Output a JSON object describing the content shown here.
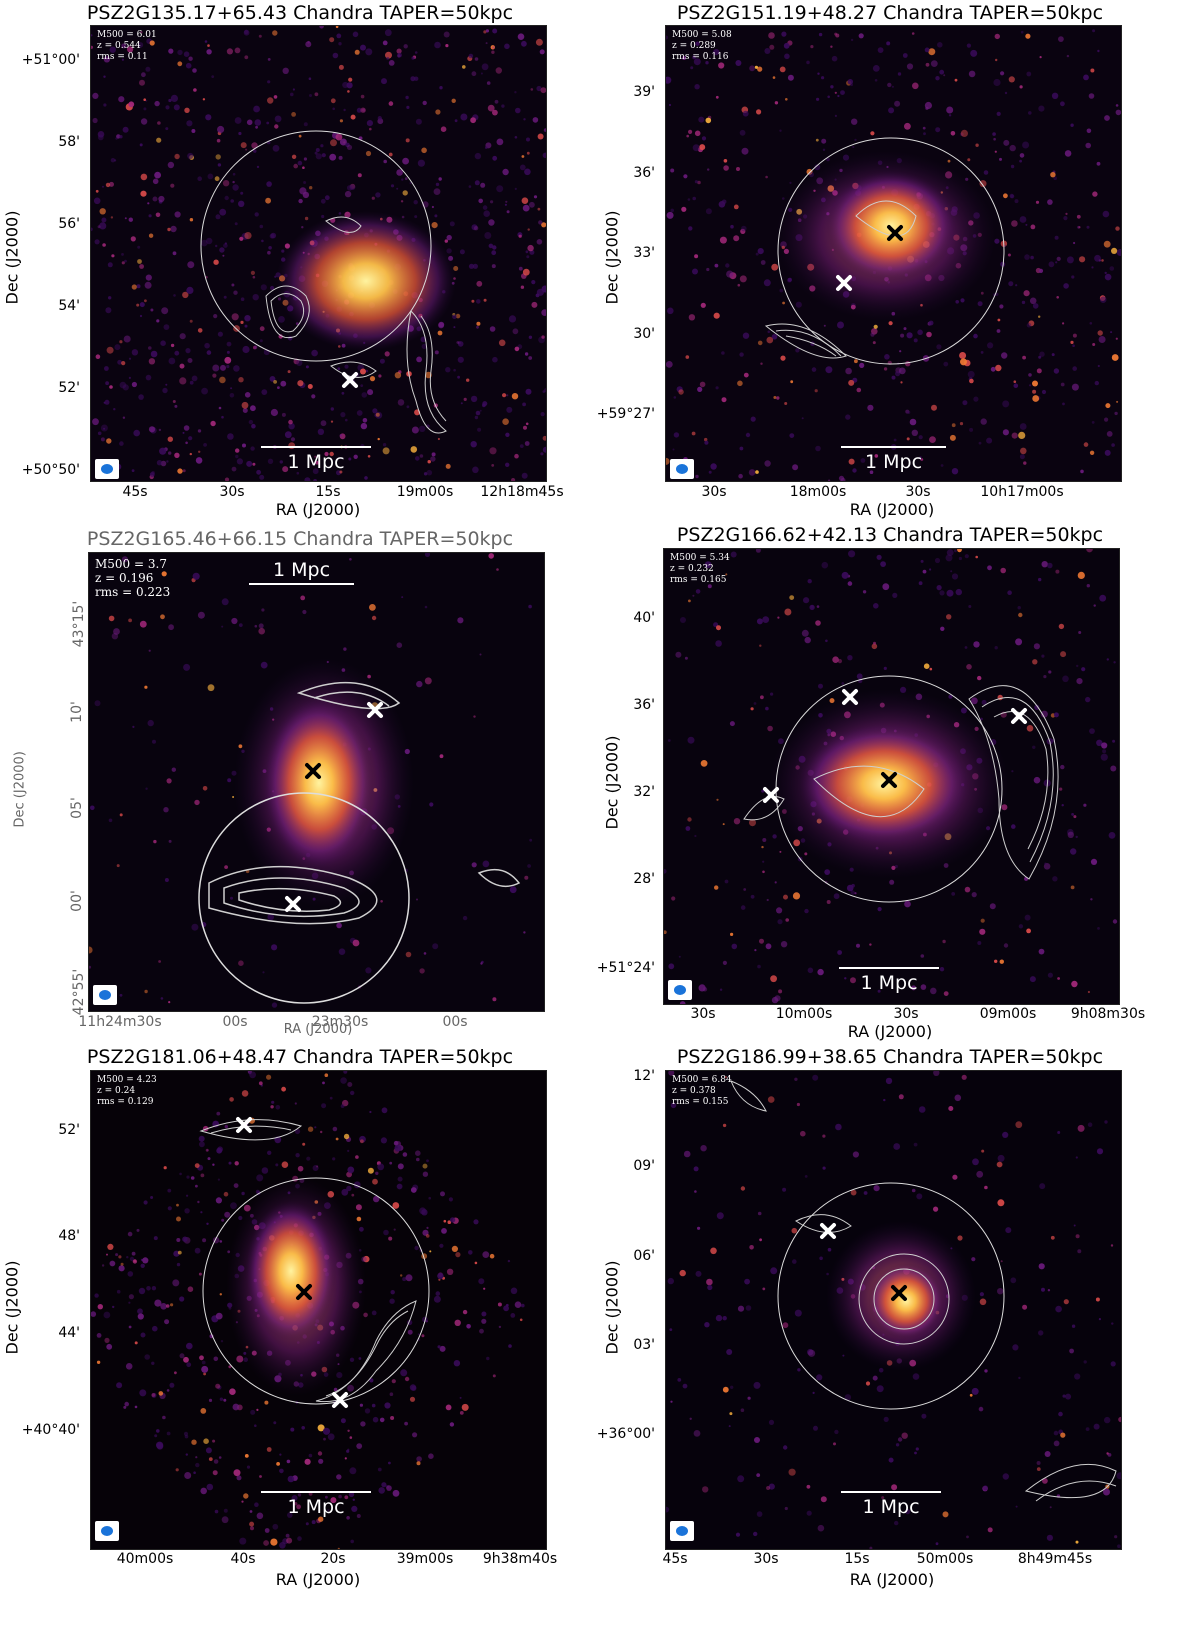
{
  "panels": [
    {
      "title": "PSZ2G135.17+65.43 Chandra TAPER=50kpc",
      "info": [
        "M500 = 6.01",
        "z = 0.544",
        "rms = 0.11"
      ],
      "scale_label": "1 Mpc",
      "ylabel": "Dec (J2000)",
      "xlabel": "RA (J2000)",
      "yticks": [
        "+51°00'",
        "58'",
        "56'",
        "54'",
        "52'",
        "+50°50'"
      ],
      "xticks": [
        "45s",
        "30s",
        "15s",
        "19m00s",
        "12h18m45s"
      ]
    },
    {
      "title": "PSZ2G151.19+48.27 Chandra TAPER=50kpc",
      "info": [
        "M500 = 5.08",
        "z = 0.289",
        "rms = 0.116"
      ],
      "scale_label": "1 Mpc",
      "ylabel": "Dec (J2000)",
      "xlabel": "RA (J2000)",
      "yticks": [
        "39'",
        "36'",
        "33'",
        "30'",
        "+59°27'"
      ],
      "xticks": [
        "30s",
        "18m00s",
        "30s",
        "10h17m00s"
      ]
    },
    {
      "title": "PSZ2G165.46+66.15 Chandra TAPER=50kpc",
      "info": [
        "M500 = 3.7",
        "z = 0.196",
        "rms = 0.223"
      ],
      "scale_label": "1 Mpc",
      "ylabel": "Dec (J2000)",
      "xlabel": "RA (J2000)",
      "yticks": [
        "43°15'",
        "10'",
        "05'",
        "00'",
        "42°55'"
      ],
      "xticks": [
        "11h24m30s",
        "00s",
        "23m30s",
        "00s"
      ]
    },
    {
      "title": "PSZ2G166.62+42.13 Chandra TAPER=50kpc",
      "info": [
        "M500 = 5.34",
        "z = 0.232",
        "rms = 0.165"
      ],
      "scale_label": "1 Mpc",
      "ylabel": "Dec (J2000)",
      "xlabel": "RA (J2000)",
      "yticks": [
        "40'",
        "36'",
        "32'",
        "28'",
        "+51°24'"
      ],
      "xticks": [
        "30s",
        "10m00s",
        "30s",
        "09m00s",
        "9h08m30s"
      ]
    },
    {
      "title": "PSZ2G181.06+48.47 Chandra TAPER=50kpc",
      "info": [
        "M500 = 4.23",
        "z = 0.24",
        "rms = 0.129"
      ],
      "scale_label": "1 Mpc",
      "ylabel": "Dec (J2000)",
      "xlabel": "RA (J2000)",
      "yticks": [
        "52'",
        "48'",
        "44'",
        "+40°40'"
      ],
      "xticks": [
        "40m00s",
        "40s",
        "20s",
        "39m00s",
        "9h38m40s"
      ]
    },
    {
      "title": "PSZ2G186.99+38.65 Chandra TAPER=50kpc",
      "info": [
        "M500 = 6.84",
        "z = 0.378",
        "rms = 0.155"
      ],
      "scale_label": "1 Mpc",
      "ylabel": "Dec (J2000)",
      "xlabel": "RA (J2000)",
      "yticks": [
        "12'",
        "09'",
        "06'",
        "03'",
        "+36°00'"
      ],
      "xticks": [
        "45s",
        "30s",
        "15s",
        "50m00s",
        "8h49m45s"
      ]
    }
  ],
  "colors": {
    "background": "#050208",
    "emission_core": "#ffe27a",
    "emission_mid": "#f0703a",
    "emission_outer": "#7a1f8a",
    "contour": "#d8d8d8",
    "marker_white": "#ffffff",
    "marker_black": "#000000",
    "beam": "#1a73d9"
  }
}
